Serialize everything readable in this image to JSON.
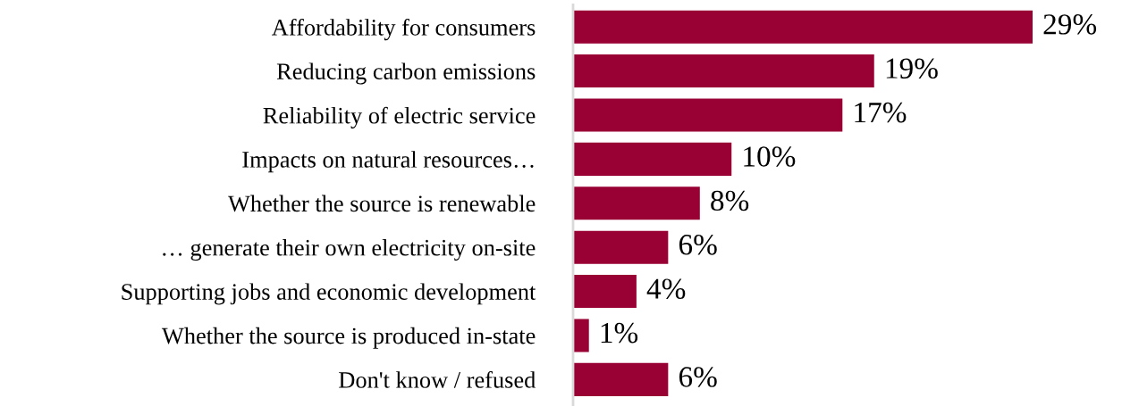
{
  "chart_data": {
    "type": "bar",
    "orientation": "horizontal",
    "categories": [
      "Affordability for consumers",
      "Reducing carbon emissions",
      "Reliability of electric service",
      "Impacts on natural resources…",
      "Whether the source is renewable",
      "… generate their own electricity on-site",
      "Supporting jobs and economic development",
      "Whether the source is produced in-state",
      "Don't know / refused"
    ],
    "values": [
      29,
      19,
      17,
      10,
      8,
      6,
      4,
      1,
      6
    ],
    "value_labels": [
      "29%",
      "19%",
      "17%",
      "10%",
      "8%",
      "6%",
      "4%",
      "1%",
      "6%"
    ],
    "color": "#990033",
    "tick_labels": "y",
    "grid": false,
    "legend": false
  }
}
